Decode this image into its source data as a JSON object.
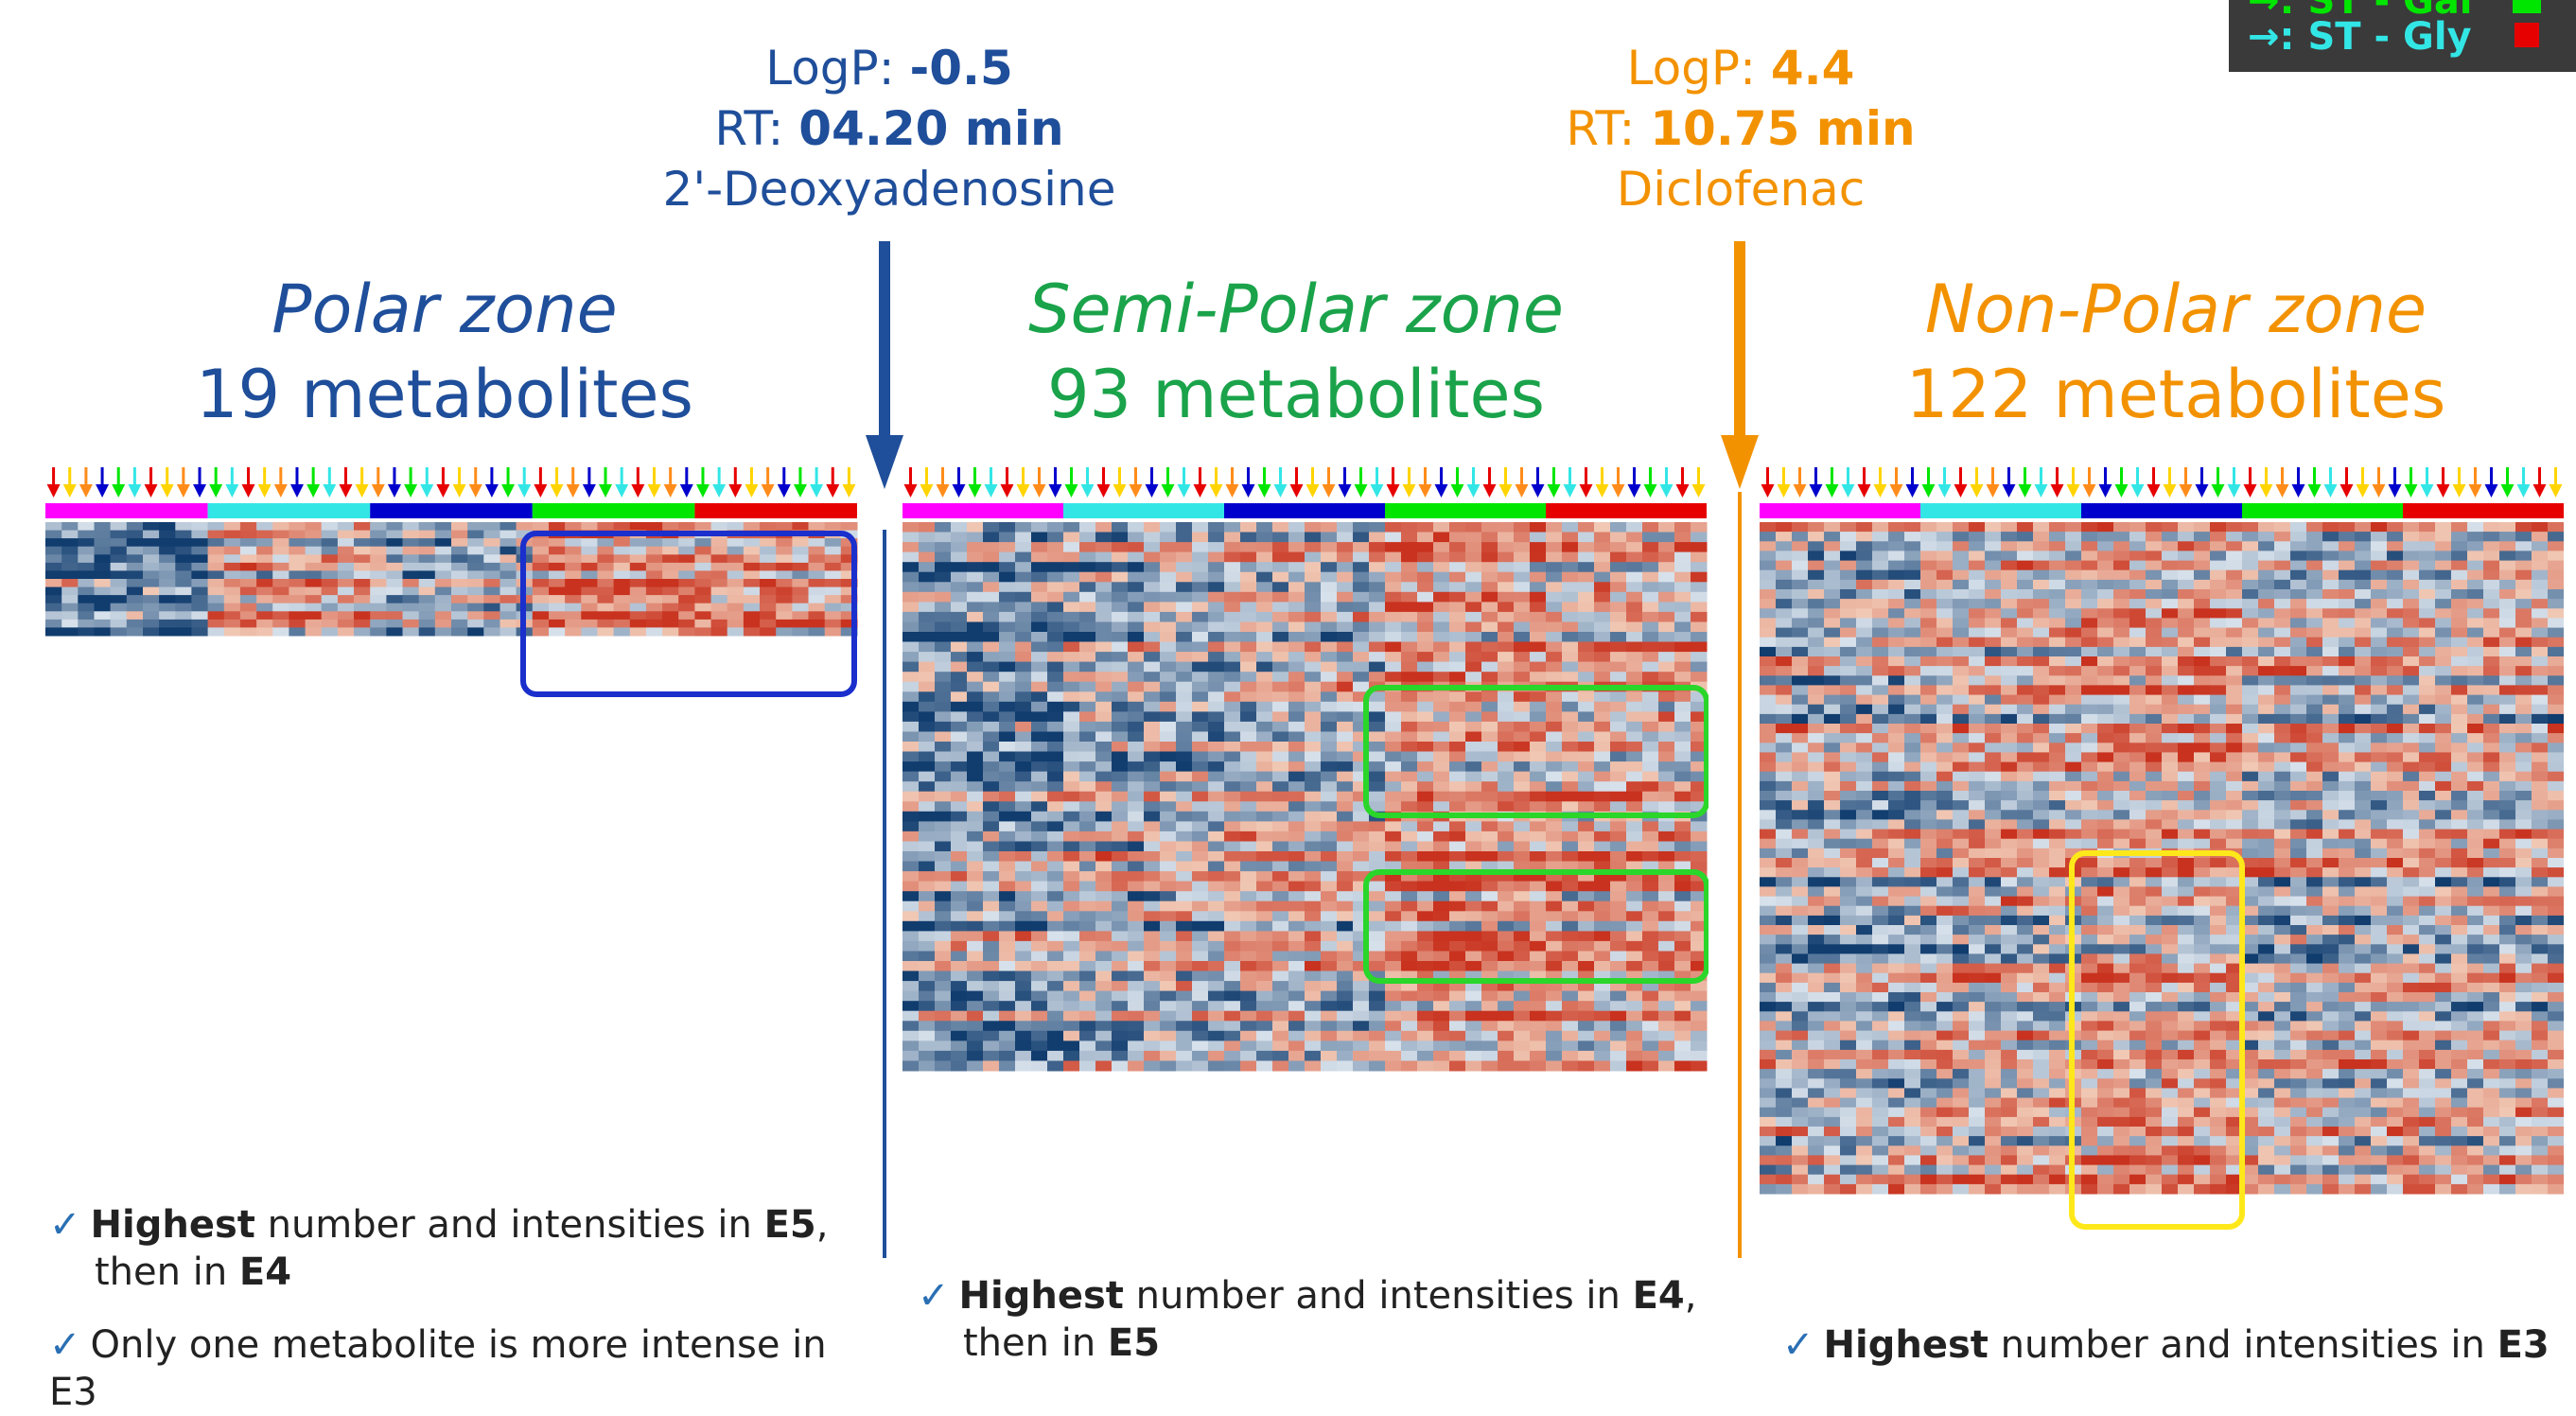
{
  "markers": [
    {
      "logp_label": "LogP: ",
      "logp_value": "-0.5",
      "rt_label": "RT: ",
      "rt_value": "04.20 min",
      "compound": "2'-Deoxyadenosine",
      "color": "#1f4e9a"
    },
    {
      "logp_label": "LogP: ",
      "logp_value": "4.4",
      "rt_label": "RT: ",
      "rt_value": "10.75 min",
      "compound": "Diclofenac",
      "color": "#f39200"
    }
  ],
  "zones": [
    {
      "title": "Polar zone",
      "count": "19 metabolites",
      "color": "#1f4e9a"
    },
    {
      "title": "Semi-Polar zone",
      "count": "93 metabolites",
      "color": "#1aa34a"
    },
    {
      "title": "Non-Polar zone",
      "count": "122 metabolites",
      "color": "#f39200"
    }
  ],
  "legend": {
    "line1": "→: ST - Gly",
    "partial_top": "→: ST - Gal"
  },
  "group_colors": [
    "#ff00ff",
    "#33e6e6",
    "#0000cc",
    "#00e600",
    "#e60000"
  ],
  "bullets": {
    "polar": [
      {
        "strong": "Highest",
        "text": " number and intensities in ",
        "b2": "E5",
        "tail": ",",
        "line2_pre": "then in ",
        "line2_b": "E4"
      },
      {
        "text_full": "Only one metabolite is more intense in E3"
      }
    ],
    "semipolar": [
      {
        "strong": "Highest",
        "text": " number and intensities in ",
        "b2": "E4",
        "tail": ",",
        "line2_pre": "then in ",
        "line2_b": "E5"
      }
    ],
    "nonpolar": [
      {
        "strong": "Highest",
        "text": " number and intensities in ",
        "b2": "E3"
      }
    ]
  },
  "icons": {
    "check": "check-icon",
    "arrow": "arrow-down-icon"
  }
}
